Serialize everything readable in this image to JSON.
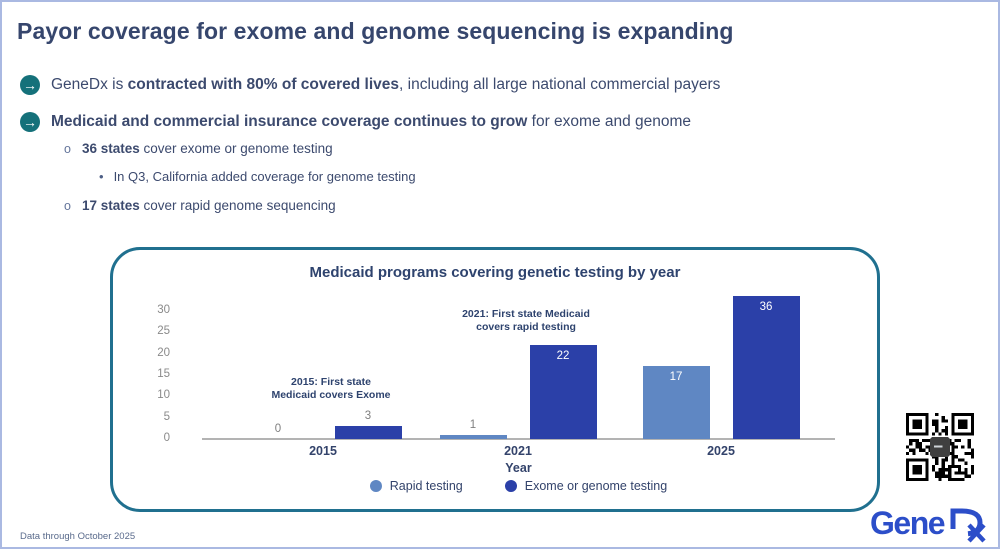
{
  "slide": {
    "title": "Payor coverage for exome and genome sequencing is expanding",
    "footer": "Data through October 2025"
  },
  "bullets": [
    {
      "segments": [
        {
          "t": "GeneDx is ",
          "b": false
        },
        {
          "t": "contracted with 80% of covered lives",
          "b": true
        },
        {
          "t": ", including all large national commercial payers",
          "b": false
        }
      ]
    },
    {
      "segments": [
        {
          "t": "Medicaid and commercial insurance coverage continues to grow",
          "b": true
        },
        {
          "t": " for exome and genome",
          "b": false
        }
      ]
    }
  ],
  "sub_bullets": [
    {
      "marker": "o",
      "segments": [
        {
          "t": "36 states",
          "b": true
        },
        {
          "t": " cover exome or genome testing",
          "b": false
        }
      ]
    },
    {
      "marker": "•",
      "segments": [
        {
          "t": "In Q3, California added coverage for genome testing",
          "b": false
        }
      ]
    },
    {
      "marker": "o",
      "segments": [
        {
          "t": "17 states",
          "b": true
        },
        {
          "t": " cover rapid genome sequencing",
          "b": false
        }
      ]
    }
  ],
  "chart_data": {
    "type": "bar",
    "title": "Medicaid programs covering genetic testing by year",
    "xlabel": "Year",
    "ylabel": "",
    "categories": [
      "2015",
      "2021",
      "2025"
    ],
    "series": [
      {
        "name": "Rapid testing",
        "color": "#5f87c3",
        "values": [
          0,
          1,
          17
        ]
      },
      {
        "name": "Exome or genome testing",
        "color": "#2b40a8",
        "values": [
          3,
          22,
          36
        ]
      }
    ],
    "y_ticks": [
      0,
      5,
      10,
      15,
      20,
      25,
      30
    ],
    "ylim": [
      0,
      33.5
    ],
    "grid": false,
    "legend_position": "bottom",
    "annotations": [
      {
        "text": "2015: First state\nMedicaid covers Exome",
        "x": "2015"
      },
      {
        "text": "2021: First state Medicaid\ncovers rapid testing",
        "x": "2021"
      }
    ]
  },
  "logo": {
    "gene": "Gene",
    "dx": "Dx"
  },
  "colors": {
    "accent_teal": "#15717a",
    "chart_border_teal": "#20708f",
    "dark_bar": "#2b40a8",
    "light_bar": "#5f87c3",
    "navy_text": "#3c4a6e",
    "logo_blue": "#2c4ec9",
    "slide_border": "#aab9e2"
  }
}
